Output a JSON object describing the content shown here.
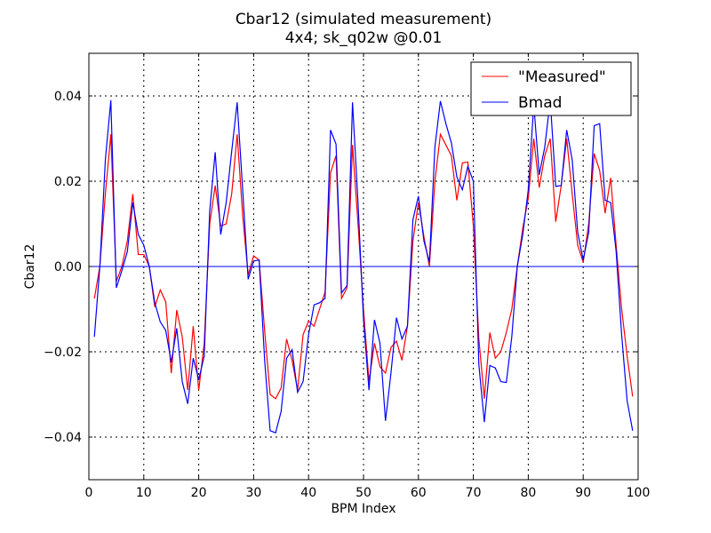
{
  "chart_data": {
    "type": "line",
    "title": "Cbar12 (simulated measurement)",
    "subtitle": "4x4; sk_q02w @0.01",
    "xlabel": "BPM Index",
    "ylabel": "Cbar12",
    "xlim": [
      0,
      100
    ],
    "ylim": [
      -0.05,
      0.05
    ],
    "xticks": [
      0,
      10,
      20,
      30,
      40,
      50,
      60,
      70,
      80,
      90,
      100
    ],
    "xtick_labels": [
      "0",
      "10",
      "20",
      "30",
      "40",
      "50",
      "60",
      "70",
      "80",
      "90",
      "100"
    ],
    "yticks": [
      0.04,
      0.02,
      0.0,
      -0.02,
      -0.04
    ],
    "ytick_labels": [
      "0.04",
      "0.02",
      "0.00",
      "−0.02",
      "−0.04"
    ],
    "grid": true,
    "legend_position": "top-right",
    "hline": 0.0,
    "series": [
      {
        "name": "\"Measured\"",
        "color": "#ff0000",
        "values": [
          -0.0075,
          0.0,
          0.017,
          0.031,
          -0.0035,
          0.0,
          0.006,
          0.017,
          0.0028,
          0.0028,
          0.0,
          -0.0095,
          -0.0055,
          -0.0083,
          -0.025,
          -0.0102,
          -0.0165,
          -0.029,
          -0.014,
          -0.029,
          -0.018,
          0.01,
          0.019,
          0.0095,
          0.01,
          0.017,
          0.031,
          0.012,
          -0.002,
          0.0025,
          0.0015,
          -0.015,
          -0.03,
          -0.031,
          -0.0285,
          -0.017,
          -0.022,
          -0.029,
          -0.016,
          -0.0128,
          -0.014,
          -0.01,
          -0.006,
          0.022,
          0.026,
          -0.0075,
          -0.005,
          0.0285,
          0.01,
          -0.01,
          -0.027,
          -0.018,
          -0.0235,
          -0.025,
          -0.019,
          -0.0175,
          -0.022,
          -0.014,
          0.006,
          0.015,
          0.007,
          0.0,
          0.02,
          0.031,
          0.0285,
          0.026,
          0.0155,
          0.0243,
          0.0245,
          0.0095,
          -0.017,
          -0.031,
          -0.0155,
          -0.0215,
          -0.02,
          -0.0155,
          -0.01,
          0.0,
          0.009,
          0.016,
          0.03,
          0.0185,
          0.026,
          0.03,
          0.0105,
          0.019,
          0.03,
          0.017,
          0.005,
          0.001,
          0.01,
          0.0265,
          0.0225,
          0.0125,
          0.0208,
          0.005,
          -0.01,
          -0.021,
          -0.0305
        ]
      },
      {
        "name": "Bmad",
        "color": "#0000ff",
        "values": [
          -0.0165,
          0.0,
          0.025,
          0.039,
          -0.005,
          -0.001,
          0.0035,
          0.015,
          0.0075,
          0.005,
          0.0,
          -0.0085,
          -0.013,
          -0.015,
          -0.0225,
          -0.0145,
          -0.027,
          -0.0322,
          -0.0215,
          -0.0265,
          -0.021,
          0.013,
          0.0268,
          0.0075,
          0.015,
          0.027,
          0.0385,
          0.018,
          -0.003,
          0.0013,
          0.0015,
          -0.022,
          -0.0385,
          -0.039,
          -0.034,
          -0.0215,
          -0.0195,
          -0.0295,
          -0.027,
          -0.016,
          -0.009,
          -0.0085,
          -0.0075,
          0.032,
          0.0287,
          -0.0062,
          -0.0045,
          0.0385,
          0.015,
          -0.0125,
          -0.029,
          -0.0125,
          -0.018,
          -0.0362,
          -0.025,
          -0.012,
          -0.017,
          -0.014,
          0.011,
          0.0165,
          0.006,
          0.001,
          0.028,
          0.0388,
          0.0335,
          0.029,
          0.021,
          0.018,
          0.0235,
          0.02,
          -0.023,
          -0.0365,
          -0.0232,
          -0.0238,
          -0.027,
          -0.0272,
          -0.0165,
          0.0,
          0.0075,
          0.018,
          0.038,
          0.0215,
          0.028,
          0.039,
          0.0188,
          0.019,
          0.032,
          0.025,
          0.008,
          0.0015,
          0.008,
          0.033,
          0.0335,
          0.0155,
          0.015,
          0.0035,
          -0.016,
          -0.0315,
          -0.0385
        ]
      }
    ]
  }
}
